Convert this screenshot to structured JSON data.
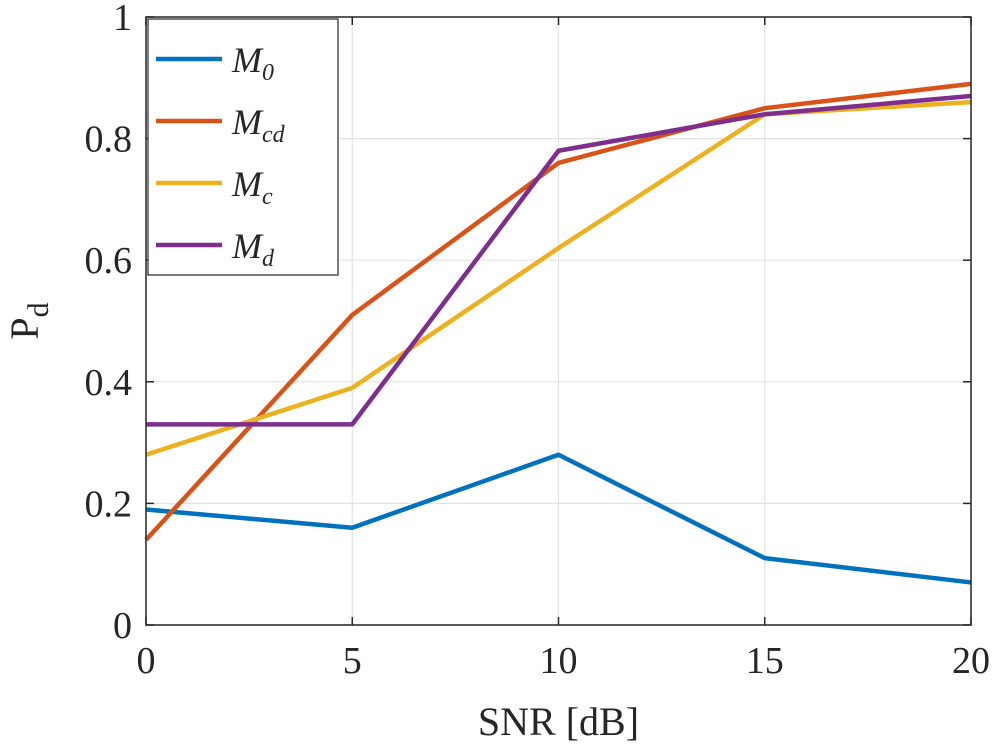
{
  "chart_data": {
    "type": "line",
    "title": "",
    "xlabel": "SNR [dB]",
    "ylabel": "P",
    "ylabel_subscript": "d",
    "x": [
      0,
      5,
      10,
      15,
      20
    ],
    "xlim": [
      0,
      20
    ],
    "ylim": [
      0,
      1
    ],
    "xticks": [
      "0",
      "5",
      "10",
      "15",
      "20"
    ],
    "yticks": [
      "0",
      "0.2",
      "0.4",
      "0.6",
      "0.8",
      "1"
    ],
    "grid": true,
    "legend_position": "top-left",
    "series": [
      {
        "name": "M",
        "subscript": "0",
        "color": "#0072BD",
        "values": [
          0.19,
          0.16,
          0.28,
          0.11,
          0.07
        ]
      },
      {
        "name": "M",
        "subscript": "cd",
        "color": "#D95319",
        "values": [
          0.14,
          0.51,
          0.76,
          0.85,
          0.89
        ]
      },
      {
        "name": "M",
        "subscript": "c",
        "color": "#EDB120",
        "values": [
          0.28,
          0.39,
          0.62,
          0.84,
          0.86
        ]
      },
      {
        "name": "M",
        "subscript": "d",
        "color": "#7E2F8E",
        "values": [
          0.33,
          0.33,
          0.78,
          0.84,
          0.87
        ]
      }
    ]
  }
}
